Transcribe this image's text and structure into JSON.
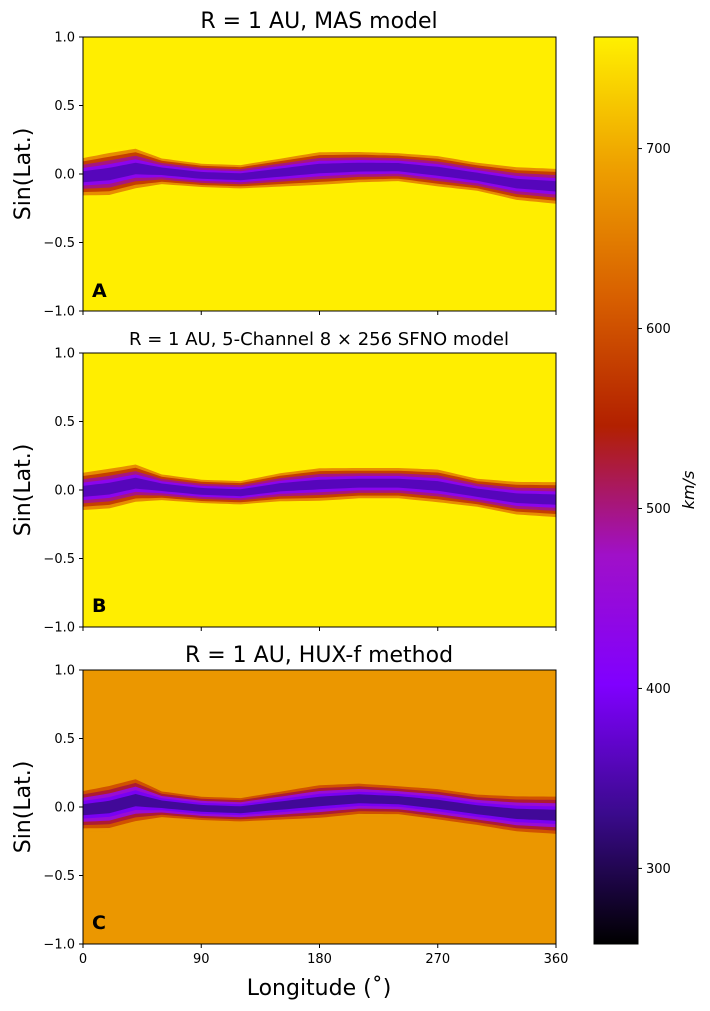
{
  "chart_data": [
    {
      "type": "heatmap",
      "title": "R = 1 AU, MAS model",
      "panel_label": "A",
      "ylabel": "Sin(Lat.)",
      "xlim": [
        0,
        360
      ],
      "ylim": [
        -1.0,
        1.0
      ],
      "yticks": [
        "−1.0",
        "−0.5",
        "0.0",
        "0.5",
        "1.0"
      ],
      "yticks_values": [
        -1.0,
        -0.5,
        0.0,
        0.5,
        1.0
      ],
      "background_speed": 760,
      "current_sheet": {
        "longitude": [
          0,
          20,
          40,
          60,
          90,
          120,
          150,
          180,
          210,
          240,
          270,
          300,
          330,
          360
        ],
        "center_sin_lat": [
          -0.02,
          0.0,
          0.04,
          0.02,
          -0.01,
          -0.02,
          0.01,
          0.04,
          0.05,
          0.05,
          0.02,
          -0.02,
          -0.07,
          -0.09
        ],
        "half_width": [
          0.16,
          0.18,
          0.17,
          0.11,
          0.1,
          0.1,
          0.12,
          0.14,
          0.13,
          0.12,
          0.13,
          0.12,
          0.14,
          0.15
        ],
        "min_speed": 280
      }
    },
    {
      "type": "heatmap",
      "title": "R = 1 AU, 5-Channel 8 × 256 SFNO model",
      "panel_label": "B",
      "ylabel": "Sin(Lat.)",
      "xlim": [
        0,
        360
      ],
      "ylim": [
        -1.0,
        1.0
      ],
      "yticks": [
        "−1.0",
        "−0.5",
        "0.0",
        "0.5",
        "1.0"
      ],
      "yticks_values": [
        -1.0,
        -0.5,
        0.0,
        0.5,
        1.0
      ],
      "background_speed": 760,
      "current_sheet": {
        "longitude": [
          0,
          20,
          40,
          60,
          90,
          120,
          150,
          180,
          210,
          240,
          270,
          300,
          330,
          360
        ],
        "center_sin_lat": [
          -0.01,
          0.01,
          0.05,
          0.02,
          -0.01,
          -0.02,
          0.02,
          0.04,
          0.05,
          0.05,
          0.03,
          -0.02,
          -0.06,
          -0.07
        ],
        "half_width": [
          0.16,
          0.17,
          0.16,
          0.11,
          0.1,
          0.1,
          0.12,
          0.14,
          0.13,
          0.13,
          0.14,
          0.12,
          0.14,
          0.15
        ],
        "min_speed": 280
      }
    },
    {
      "type": "heatmap",
      "title": "R = 1 AU, HUX-f method",
      "panel_label": "C",
      "ylabel": "Sin(Lat.)",
      "xlabel": "Longitude (˚)",
      "xlim": [
        0,
        360
      ],
      "xticks": [
        "0",
        "90",
        "180",
        "270",
        "360"
      ],
      "xticks_values": [
        0,
        90,
        180,
        270,
        360
      ],
      "ylim": [
        -1.0,
        1.0
      ],
      "yticks": [
        "−1.0",
        "−0.5",
        "0.0",
        "0.5",
        "1.0"
      ],
      "yticks_values": [
        -1.0,
        -0.5,
        0.0,
        0.5,
        1.0
      ],
      "background_speed": 680,
      "current_sheet": {
        "longitude": [
          0,
          20,
          40,
          60,
          90,
          120,
          150,
          180,
          210,
          240,
          270,
          300,
          330,
          360
        ],
        "center_sin_lat": [
          -0.02,
          0.0,
          0.05,
          0.02,
          -0.01,
          -0.02,
          0.01,
          0.04,
          0.06,
          0.05,
          0.02,
          -0.02,
          -0.05,
          -0.06
        ],
        "half_width": [
          0.16,
          0.18,
          0.18,
          0.11,
          0.1,
          0.1,
          0.12,
          0.14,
          0.13,
          0.12,
          0.13,
          0.13,
          0.15,
          0.16
        ],
        "min_speed": 270
      }
    }
  ],
  "colorbar": {
    "label": "km/s",
    "range": [
      258,
      762
    ],
    "ticks": [
      "300",
      "400",
      "500",
      "600",
      "700"
    ],
    "ticks_values": [
      300,
      400,
      500,
      600,
      700
    ],
    "colormap": "gnuplot2-like",
    "colors": [
      "#000000",
      "#3a0a8c",
      "#8000ff",
      "#a010c8",
      "#b22000",
      "#d86000",
      "#eea000",
      "#fff000"
    ]
  }
}
